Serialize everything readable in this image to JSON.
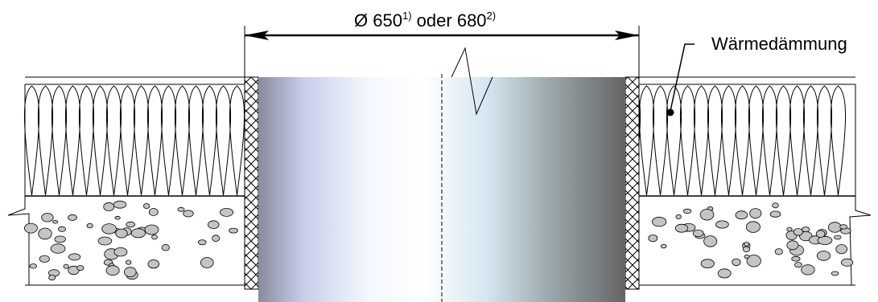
{
  "dimension": {
    "symbol": "Ø",
    "value_1": "650",
    "note_1": "1)",
    "connector": "oder",
    "value_2": "680",
    "note_2": "2)"
  },
  "labels": {
    "insulation": "Wärmedämmung"
  },
  "colors": {
    "pipe_left": "#878c9e",
    "pipe_light": "#ffffff",
    "pipe_right": "#646464",
    "aggregate_fill": "#c4c4c4",
    "line": "#000000"
  }
}
